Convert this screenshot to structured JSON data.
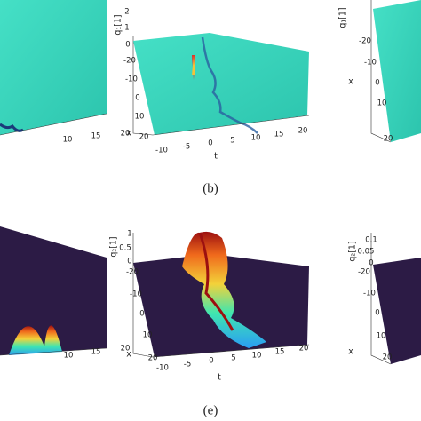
{
  "top_row": {
    "left": {
      "t_ticks": [
        "10",
        "15",
        "20"
      ]
    },
    "middle": {
      "z_label": "q₁[1]",
      "z_ticks": [
        "2",
        "1",
        "0"
      ],
      "x_ticks": [
        "-20",
        "-10",
        "0",
        "10",
        "20"
      ],
      "x_label": "x",
      "t_ticks": [
        "-10",
        "-5",
        "0",
        "5",
        "10",
        "15",
        "20"
      ],
      "t_label": "t"
    },
    "right": {
      "z_label": "q₁[1]",
      "x_ticks": [
        "-20",
        "-10",
        "0",
        "10",
        "20"
      ],
      "x_label": "x"
    },
    "caption": "(b)"
  },
  "bottom_row": {
    "left": {
      "t_ticks": [
        "10",
        "15",
        "20"
      ]
    },
    "middle": {
      "z_label": "q₂[1]",
      "z_ticks": [
        "1",
        "0.5",
        "0"
      ],
      "x_ticks": [
        "-20",
        "-10",
        "0",
        "10",
        "20"
      ],
      "x_label": "x",
      "t_ticks": [
        "-10",
        "-5",
        "0",
        "5",
        "10",
        "15",
        "20"
      ],
      "t_label": "t"
    },
    "right": {
      "z_label": "q₂[1]",
      "z_ticks": [
        "0.1",
        "0.05",
        "0"
      ],
      "x_ticks": [
        "-20",
        "-10",
        "0",
        "10",
        "20"
      ],
      "x_label": "x"
    },
    "caption": "(e)"
  }
}
